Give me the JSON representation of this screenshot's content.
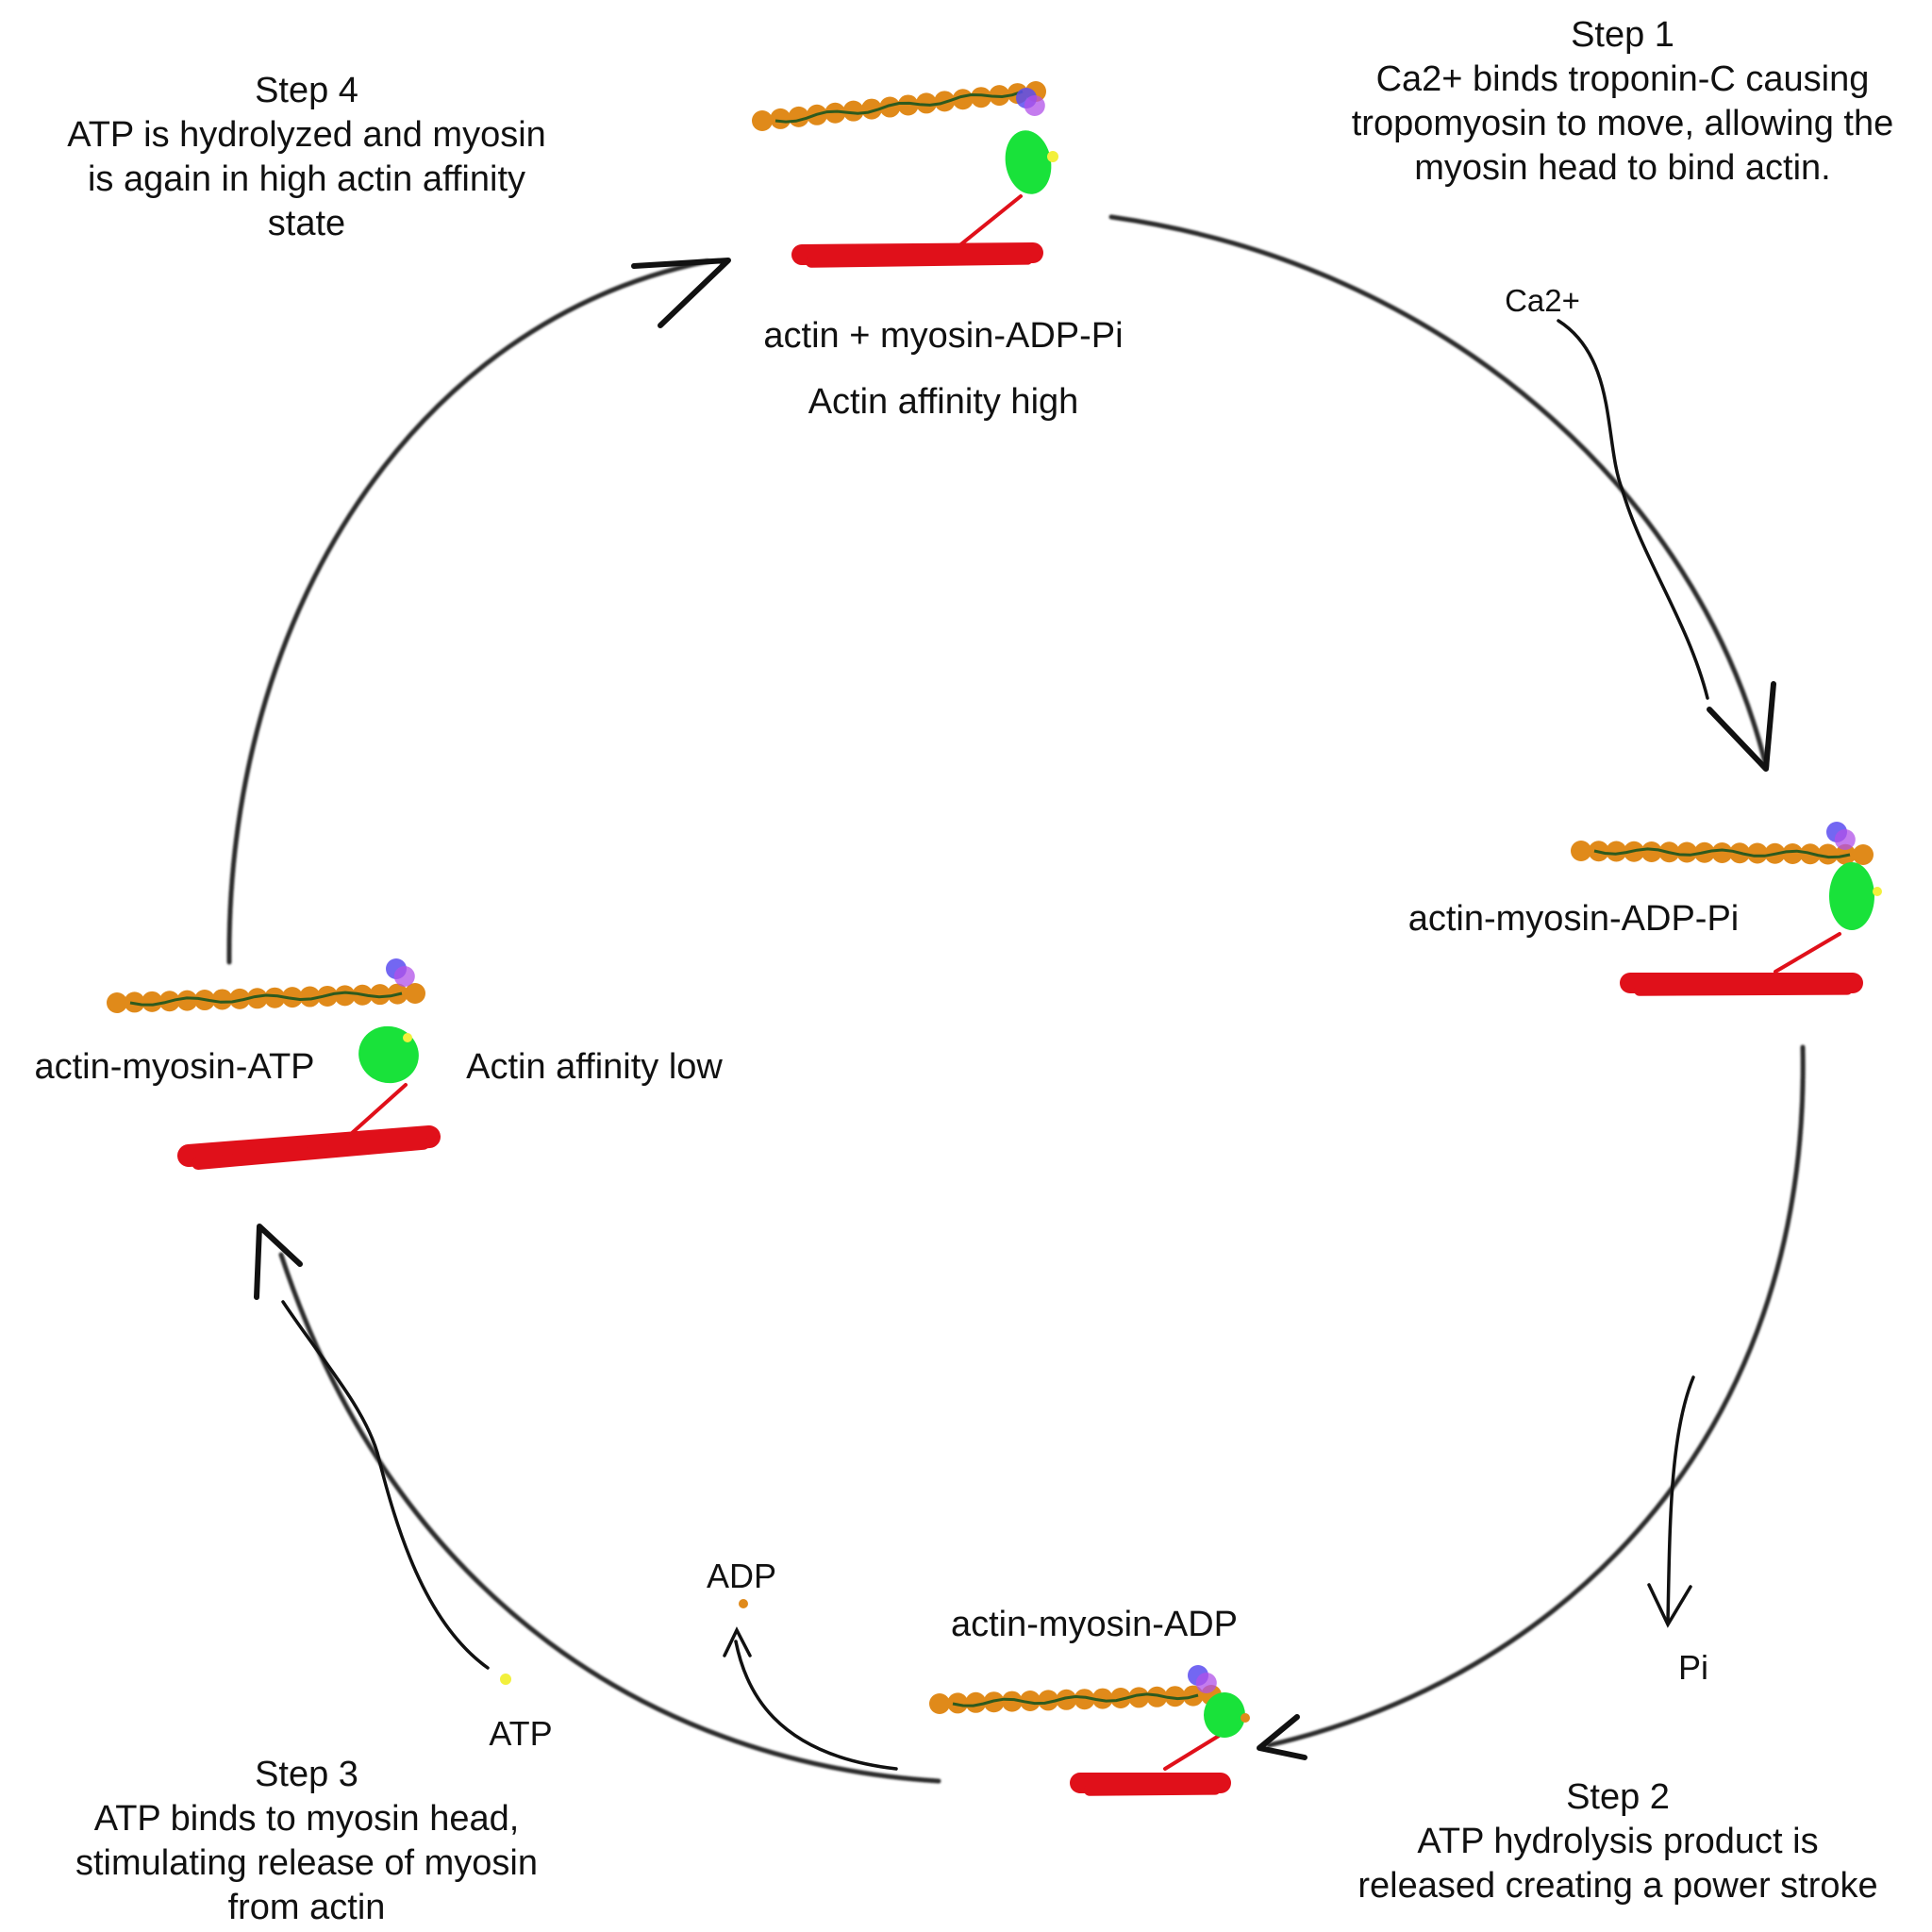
{
  "steps": {
    "step1": {
      "title": "Step 1",
      "lines": [
        "Ca2+ binds troponin-C causing",
        "tropomyosin to move, allowing the",
        "myosin head to bind actin."
      ]
    },
    "step2": {
      "title": "Step 2",
      "lines": [
        "ATP hydrolysis product is",
        "released creating a power stroke"
      ]
    },
    "step3": {
      "title": "Step 3",
      "lines": [
        "ATP binds to myosin head,",
        "stimulating release of myosin",
        "from actin"
      ]
    },
    "step4": {
      "title": "Step 4",
      "lines": [
        "ATP is hydrolyzed and myosin",
        "is again in high actin affinity",
        "state"
      ]
    }
  },
  "states": {
    "top": "actin + myosin-ADP-Pi",
    "top_affinity": "Actin affinity high",
    "right": "actin-myosin-ADP-Pi",
    "bottom": "actin-myosin-ADP",
    "left": "actin-myosin-ATP",
    "left_affinity": "Actin affinity low"
  },
  "molecules": {
    "ca": "Ca2+",
    "pi": "Pi",
    "adp": "ADP",
    "atp": "ATP"
  },
  "colors": {
    "actin_bead": "#E08A1A",
    "tropomyosin": "#2E5A1E",
    "troponin_blue": "#5A4CF0",
    "troponin_violet": "#B050E8",
    "myosin_head": "#19E23A",
    "myosin_thick": "#E0101A",
    "atp_dot": "#F2F03C",
    "adp_dot": "#E08A1A"
  }
}
